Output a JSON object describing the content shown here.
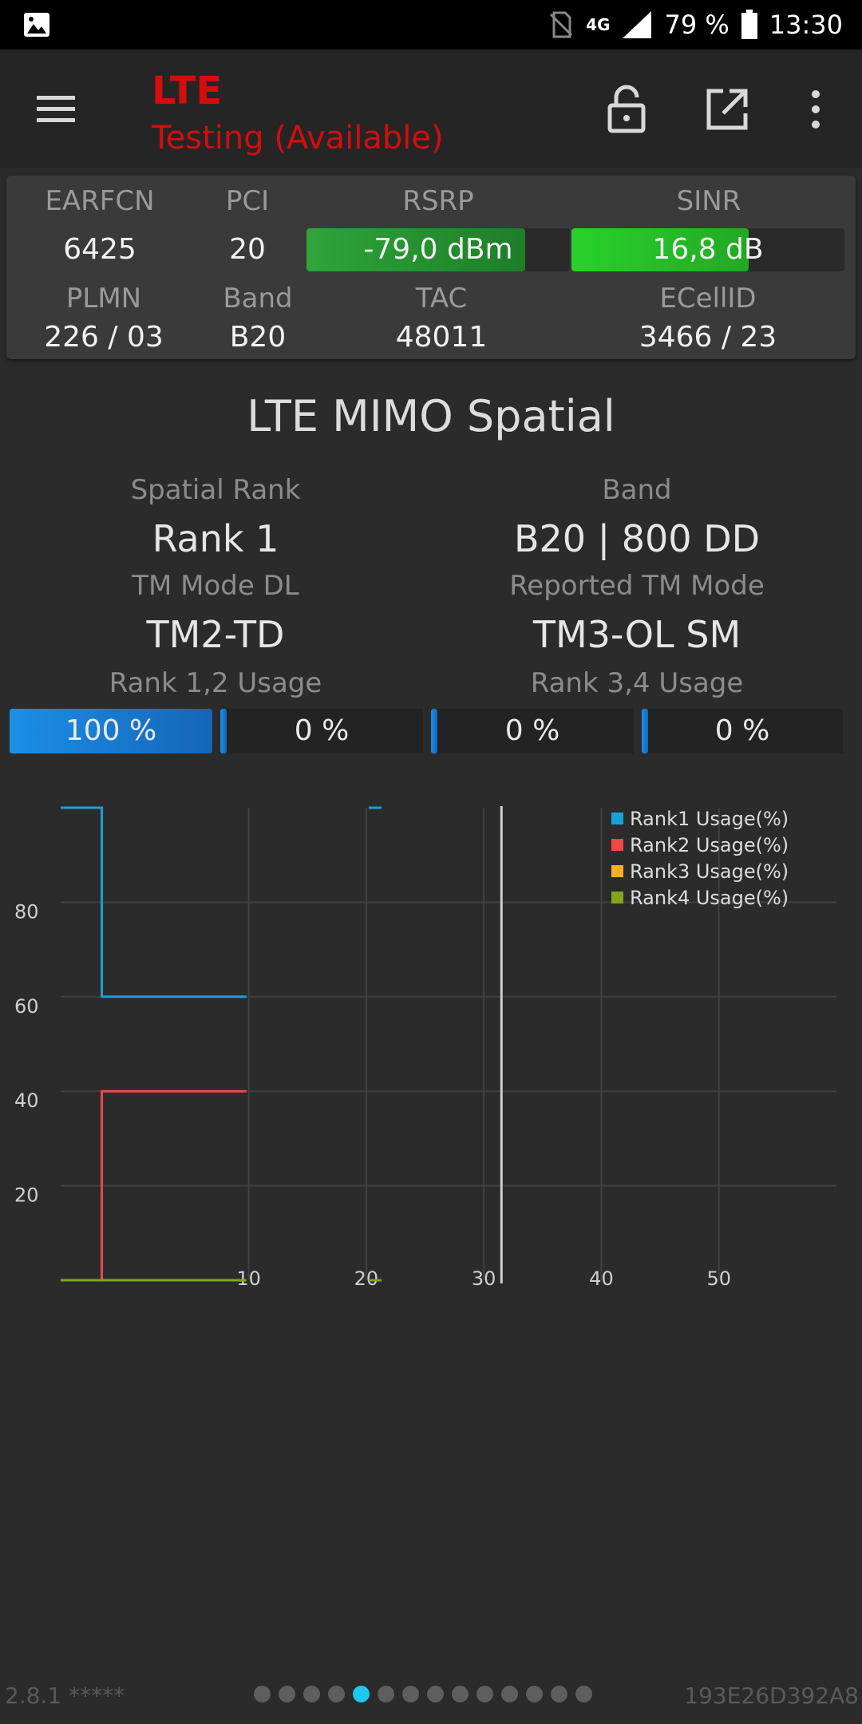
{
  "status_bar": {
    "network": "4G",
    "battery": "79 %",
    "time": "13:30"
  },
  "app_bar": {
    "title": "LTE",
    "subtitle": "Testing (Available)"
  },
  "info": {
    "earfcn_label": "EARFCN",
    "earfcn": "6425",
    "pci_label": "PCI",
    "pci": "20",
    "rsrp_label": "RSRP",
    "rsrp": "-79,0 dBm",
    "rsrp_level": 0.83,
    "sinr_label": "SINR",
    "sinr": "16,8 dB",
    "sinr_level": 0.65,
    "plmn_label": "PLMN",
    "plmn": "226 / 03",
    "band_label": "Band",
    "band": "B20",
    "tac_label": "TAC",
    "tac": "48011",
    "ecellid_label": "ECellID",
    "ecellid": "3466 / 23"
  },
  "mimo": {
    "title": "LTE MIMO Spatial",
    "spatial_rank_label": "Spatial Rank",
    "spatial_rank": "Rank 1",
    "band_label": "Band",
    "band": "B20 | 800 DD",
    "tm_mode_label": "TM Mode DL",
    "tm_mode": "TM2-TD",
    "reported_tm_label": "Reported TM Mode",
    "reported_tm": "TM3-OL SM",
    "rank12_label": "Rank 1,2 Usage",
    "rank34_label": "Rank 3,4 Usage",
    "usage": [
      {
        "text": "100 %",
        "level": 1.0
      },
      {
        "text": "0 %",
        "level": 0
      },
      {
        "text": "0 %",
        "level": 0
      },
      {
        "text": "0 %",
        "level": 0
      }
    ]
  },
  "chart_data": {
    "type": "line",
    "x_ticks": [
      "10",
      "20",
      "30",
      "40",
      "50"
    ],
    "y_ticks": [
      "20",
      "40",
      "60",
      "80"
    ],
    "xlim": [
      -6,
      60
    ],
    "ylim": [
      0,
      100
    ],
    "grid": true,
    "legend_position": "top-right",
    "current_x": 31.5,
    "series": [
      {
        "name": "Rank1 Usage(%)",
        "color": "#1aa0d8",
        "points": [
          [
            -6,
            100
          ],
          [
            -2.5,
            100
          ],
          [
            -2.5,
            60
          ],
          [
            0,
            60
          ],
          [
            9.8,
            60
          ]
        ],
        "extra": [
          [
            20.2,
            100
          ],
          [
            21.3,
            100
          ]
        ]
      },
      {
        "name": "Rank2 Usage(%)",
        "color": "#f04848",
        "points": [
          [
            -2.5,
            0
          ],
          [
            -2.5,
            40
          ],
          [
            9.8,
            40
          ]
        ]
      },
      {
        "name": "Rank3 Usage(%)",
        "color": "#f5b022",
        "points": []
      },
      {
        "name": "Rank4 Usage(%)",
        "color": "#7fa81a",
        "points": [
          [
            -6,
            0
          ],
          [
            9.8,
            0
          ]
        ],
        "extra": [
          [
            20.2,
            0
          ],
          [
            21.3,
            0
          ]
        ]
      }
    ]
  },
  "footer": {
    "version": "2.8.1 *****",
    "device_id": "193E26D392A8",
    "page_count": 14,
    "active_page": 4
  }
}
